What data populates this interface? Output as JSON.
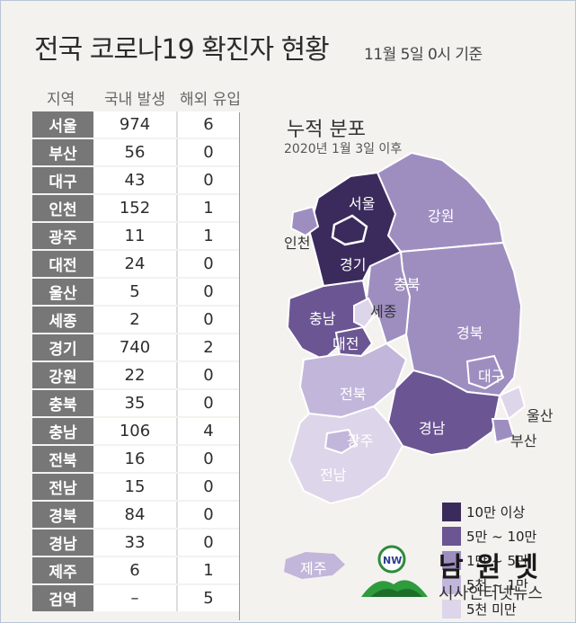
{
  "title": "전국 코로나19 확진자 현황",
  "date": "11월 5일 0시 기준",
  "table": {
    "headers": [
      "지역",
      "국내 발생",
      "해외 유입"
    ],
    "rows": [
      {
        "region": "서울",
        "domestic": "974",
        "overseas": "6"
      },
      {
        "region": "부산",
        "domestic": "56",
        "overseas": "0"
      },
      {
        "region": "대구",
        "domestic": "43",
        "overseas": "0"
      },
      {
        "region": "인천",
        "domestic": "152",
        "overseas": "1"
      },
      {
        "region": "광주",
        "domestic": "11",
        "overseas": "1"
      },
      {
        "region": "대전",
        "domestic": "24",
        "overseas": "0"
      },
      {
        "region": "울산",
        "domestic": "5",
        "overseas": "0"
      },
      {
        "region": "세종",
        "domestic": "2",
        "overseas": "0"
      },
      {
        "region": "경기",
        "domestic": "740",
        "overseas": "2"
      },
      {
        "region": "강원",
        "domestic": "22",
        "overseas": "0"
      },
      {
        "region": "충북",
        "domestic": "35",
        "overseas": "0"
      },
      {
        "region": "충남",
        "domestic": "106",
        "overseas": "4"
      },
      {
        "region": "전북",
        "domestic": "16",
        "overseas": "0"
      },
      {
        "region": "전남",
        "domestic": "15",
        "overseas": "0"
      },
      {
        "region": "경북",
        "domestic": "84",
        "overseas": "0"
      },
      {
        "region": "경남",
        "domestic": "33",
        "overseas": "0"
      },
      {
        "region": "제주",
        "domestic": "6",
        "overseas": "1"
      },
      {
        "region": "검역",
        "domestic": "–",
        "overseas": "5"
      }
    ]
  },
  "map": {
    "title": "누적 분포",
    "subtitle": "2020년 1월 3일 이후",
    "labels": {
      "seoul": "서울",
      "incheon": "인천",
      "gyeonggi": "경기",
      "gangwon": "강원",
      "chungbuk": "충북",
      "chungnam": "충남",
      "sejong": "세종",
      "daejeon": "대전",
      "gyeongbuk": "경북",
      "daegu": "대구",
      "jeonbuk": "전북",
      "gyeongnam": "경남",
      "ulsan": "울산",
      "busan": "부산",
      "gwangju": "광주",
      "jeonnam": "전남",
      "jeju": "제주"
    }
  },
  "legend": [
    {
      "label": "10만 이상",
      "color": "#3b2b5c"
    },
    {
      "label": "5만 ~ 10만",
      "color": "#6b5593"
    },
    {
      "label": "1만 ~ 5만",
      "color": "#9e8ec0"
    },
    {
      "label": "5천 ~ 1만",
      "color": "#c2b6da"
    },
    {
      "label": "5천 미만",
      "color": "#ddd5ea"
    }
  ],
  "logo": {
    "brand": "남원넷",
    "tagline": "시사인터넷뉴스",
    "icon_text": "NW"
  }
}
